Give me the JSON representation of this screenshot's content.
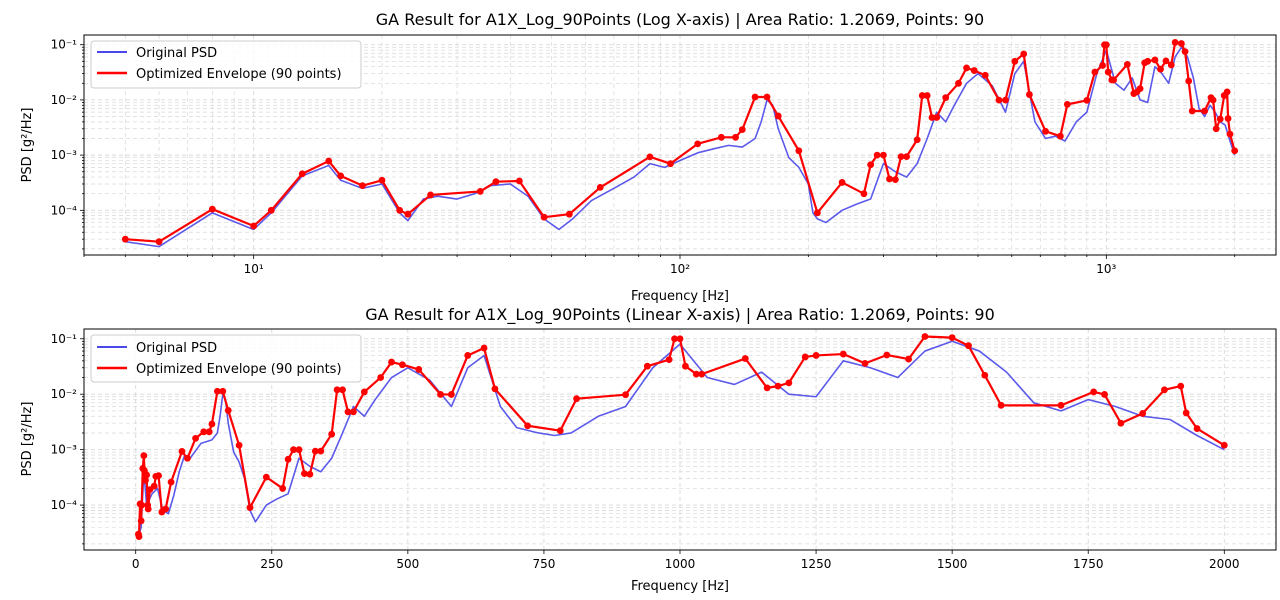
{
  "colors": {
    "original": "#4a48e8",
    "envelope": "#ff0000",
    "grid": "#d8d8d8"
  },
  "chart_data": [
    {
      "type": "line",
      "title": "GA Result for A1X_Log_90Points (Log X-axis) | Area Ratio: 1.2069, Points: 90",
      "xlabel": "Frequency [Hz]",
      "ylabel": "PSD [g²/Hz]",
      "xscale": "log",
      "yscale": "log",
      "xlim": [
        4,
        2500
      ],
      "ylim": [
        1.55e-05,
        0.15
      ],
      "xticks": [
        {
          "value": 10,
          "label": "10¹"
        },
        {
          "value": 100,
          "label": "10²"
        },
        {
          "value": 1000,
          "label": "10³"
        }
      ],
      "yticks": [
        {
          "value": 0.0001,
          "label": "10⁻⁴"
        },
        {
          "value": 0.001,
          "label": "10⁻³"
        },
        {
          "value": 0.01,
          "label": "10⁻²"
        },
        {
          "value": 0.1,
          "label": "10⁻¹"
        }
      ],
      "grid": true,
      "legend_position": "top-left",
      "legend": [
        "Original PSD",
        "Optimized Envelope (90 points)"
      ],
      "series": [
        {
          "name": "Original PSD",
          "x": [
            5,
            6,
            8,
            10,
            11,
            13,
            15,
            16,
            18,
            20,
            22,
            23,
            25,
            27,
            30,
            33,
            36,
            40,
            44,
            48,
            52,
            56,
            62,
            70,
            78,
            85,
            92,
            100,
            110,
            120,
            130,
            140,
            150,
            155,
            160,
            165,
            170,
            180,
            190,
            200,
            205,
            210,
            220,
            240,
            260,
            280,
            300,
            320,
            340,
            360,
            380,
            400,
            420,
            440,
            470,
            500,
            540,
            580,
            610,
            640,
            680,
            720,
            760,
            800,
            850,
            900,
            950,
            1000,
            1050,
            1100,
            1150,
            1200,
            1250,
            1300,
            1350,
            1400,
            1450,
            1500,
            1550,
            1600,
            1650,
            1700,
            1750,
            1800,
            1850,
            1900,
            1950,
            2000
          ],
          "y": [
            2.7e-05,
            2.2e-05,
            9e-05,
            4.5e-05,
            9e-05,
            0.00042,
            0.00065,
            0.00035,
            0.00025,
            0.0003,
            9e-05,
            6.5e-05,
            0.00016,
            0.00018,
            0.00016,
            0.0002,
            0.00028,
            0.0003,
            0.00018,
            7e-05,
            4.5e-05,
            7e-05,
            0.00015,
            0.00025,
            0.0004,
            0.0007,
            0.0006,
            0.0008,
            0.0011,
            0.0013,
            0.0015,
            0.0014,
            0.002,
            0.004,
            0.01,
            0.008,
            0.003,
            0.0009,
            0.0006,
            0.0003,
            9e-05,
            7e-05,
            6e-05,
            0.0001,
            0.00013,
            0.00016,
            0.0007,
            0.0005,
            0.0004,
            0.0007,
            0.002,
            0.006,
            0.004,
            0.008,
            0.02,
            0.03,
            0.018,
            0.006,
            0.03,
            0.05,
            0.004,
            0.002,
            0.0022,
            0.0018,
            0.004,
            0.006,
            0.03,
            0.08,
            0.02,
            0.015,
            0.025,
            0.01,
            0.009,
            0.04,
            0.03,
            0.02,
            0.06,
            0.09,
            0.06,
            0.025,
            0.007,
            0.005,
            0.008,
            0.006,
            0.004,
            0.0035,
            0.0018,
            0.001
          ]
        },
        {
          "name": "Optimized Envelope (90 points)",
          "x": [
            5,
            6,
            8,
            10,
            11,
            13,
            15,
            16,
            18,
            20,
            22,
            23,
            26,
            34,
            37,
            42,
            48,
            55,
            65,
            85,
            95,
            110,
            125,
            135,
            140,
            150,
            160,
            170,
            190,
            210,
            240,
            270,
            280,
            290,
            300,
            310,
            320,
            330,
            340,
            360,
            370,
            380,
            390,
            400,
            420,
            450,
            470,
            490,
            520,
            560,
            580,
            610,
            640,
            660,
            720,
            780,
            810,
            900,
            940,
            980,
            990,
            1000,
            1010,
            1030,
            1040,
            1120,
            1160,
            1180,
            1200,
            1230,
            1250,
            1300,
            1340,
            1380,
            1420,
            1450,
            1500,
            1530,
            1560,
            1590,
            1700,
            1760,
            1780,
            1810,
            1850,
            1890,
            1920,
            1930,
            1950,
            2000
          ],
          "y": [
            3e-05,
            2.7e-05,
            0.000105,
            5.2e-05,
            0.0001,
            0.00046,
            0.00078,
            0.00042,
            0.00028,
            0.00035,
            0.0001,
            8.5e-05,
            0.00019,
            0.00022,
            0.00033,
            0.00034,
            7.5e-05,
            8.5e-05,
            0.00026,
            0.00093,
            0.0007,
            0.0016,
            0.0021,
            0.0021,
            0.0029,
            0.0113,
            0.0113,
            0.0051,
            0.0012,
            9e-05,
            0.00032,
            0.0002,
            0.00067,
            0.001,
            0.001,
            0.00037,
            0.00036,
            0.00094,
            0.00094,
            0.0019,
            0.012,
            0.012,
            0.0048,
            0.0048,
            0.011,
            0.02,
            0.038,
            0.034,
            0.028,
            0.0099,
            0.0099,
            0.05,
            0.068,
            0.0125,
            0.0027,
            0.0022,
            0.0083,
            0.0098,
            0.032,
            0.042,
            0.1,
            0.1,
            0.032,
            0.023,
            0.023,
            0.044,
            0.013,
            0.014,
            0.016,
            0.047,
            0.05,
            0.053,
            0.036,
            0.051,
            0.043,
            0.11,
            0.105,
            0.075,
            0.022,
            0.0063,
            0.0063,
            0.011,
            0.0099,
            0.003,
            0.0045,
            0.012,
            0.014,
            0.0046,
            0.0024,
            0.0012
          ]
        }
      ]
    },
    {
      "type": "line",
      "title": "GA Result for A1X_Log_90Points (Linear X-axis) | Area Ratio: 1.2069, Points: 90",
      "xlabel": "Frequency [Hz]",
      "ylabel": "PSD [g²/Hz]",
      "xscale": "linear",
      "yscale": "log",
      "xlim": [
        -95,
        2095
      ],
      "ylim": [
        1.55e-05,
        0.15
      ],
      "xticks": [
        {
          "value": 0,
          "label": "0"
        },
        {
          "value": 250,
          "label": "250"
        },
        {
          "value": 500,
          "label": "500"
        },
        {
          "value": 750,
          "label": "750"
        },
        {
          "value": 1000,
          "label": "1000"
        },
        {
          "value": 1250,
          "label": "1250"
        },
        {
          "value": 1500,
          "label": "1500"
        },
        {
          "value": 1750,
          "label": "1750"
        },
        {
          "value": 2000,
          "label": "2000"
        }
      ],
      "yticks": [
        {
          "value": 0.0001,
          "label": "10⁻⁴"
        },
        {
          "value": 0.001,
          "label": "10⁻³"
        },
        {
          "value": 0.01,
          "label": "10⁻²"
        },
        {
          "value": 0.1,
          "label": "10⁻¹"
        }
      ],
      "grid": true,
      "legend_position": "top-left",
      "legend": [
        "Original PSD",
        "Optimized Envelope (90 points)"
      ],
      "series": [
        {
          "name": "Original PSD",
          "x": [
            5,
            10,
            15,
            20,
            30,
            40,
            50,
            60,
            70,
            80,
            90,
            100,
            120,
            140,
            150,
            155,
            160,
            165,
            170,
            180,
            190,
            200,
            210,
            220,
            240,
            260,
            280,
            300,
            320,
            340,
            360,
            380,
            400,
            420,
            440,
            470,
            500,
            540,
            580,
            610,
            640,
            670,
            700,
            740,
            770,
            800,
            850,
            900,
            950,
            1000,
            1050,
            1100,
            1150,
            1200,
            1250,
            1300,
            1350,
            1400,
            1450,
            1500,
            1550,
            1600,
            1650,
            1700,
            1750,
            1800,
            1850,
            1900,
            1950,
            2000
          ],
          "y": [
            2.7e-05,
            4e-05,
            0.0004,
            0.0001,
            0.00016,
            0.0002,
            8e-05,
            7e-05,
            0.00015,
            0.0004,
            0.0008,
            0.0007,
            0.0013,
            0.0015,
            0.002,
            0.004,
            0.01,
            0.008,
            0.003,
            0.0009,
            0.0006,
            0.0003,
            8e-05,
            5e-05,
            0.0001,
            0.00013,
            0.00016,
            0.0007,
            0.0005,
            0.0004,
            0.0007,
            0.002,
            0.006,
            0.004,
            0.008,
            0.02,
            0.03,
            0.018,
            0.006,
            0.03,
            0.05,
            0.006,
            0.0025,
            0.002,
            0.0018,
            0.002,
            0.004,
            0.006,
            0.03,
            0.08,
            0.02,
            0.015,
            0.025,
            0.01,
            0.009,
            0.04,
            0.03,
            0.02,
            0.06,
            0.09,
            0.06,
            0.025,
            0.007,
            0.005,
            0.008,
            0.006,
            0.004,
            0.0035,
            0.0018,
            0.001
          ]
        },
        {
          "name": "Optimized Envelope (90 points)",
          "x": [
            5,
            6,
            8,
            10,
            11,
            13,
            15,
            16,
            18,
            20,
            22,
            23,
            26,
            34,
            37,
            42,
            48,
            55,
            65,
            85,
            95,
            110,
            125,
            135,
            140,
            150,
            160,
            170,
            190,
            210,
            240,
            270,
            280,
            290,
            300,
            310,
            320,
            330,
            340,
            360,
            370,
            380,
            390,
            400,
            420,
            450,
            470,
            490,
            520,
            560,
            580,
            610,
            640,
            660,
            720,
            780,
            810,
            900,
            940,
            980,
            990,
            1000,
            1010,
            1030,
            1040,
            1120,
            1160,
            1180,
            1200,
            1230,
            1250,
            1300,
            1340,
            1380,
            1420,
            1450,
            1500,
            1530,
            1560,
            1590,
            1700,
            1760,
            1780,
            1810,
            1850,
            1890,
            1920,
            1930,
            1950,
            2000
          ],
          "y": [
            3e-05,
            2.7e-05,
            0.000105,
            5.2e-05,
            0.0001,
            0.00046,
            0.00078,
            0.00042,
            0.00028,
            0.00035,
            0.0001,
            8.5e-05,
            0.00019,
            0.00022,
            0.00033,
            0.00034,
            7.5e-05,
            8.5e-05,
            0.00026,
            0.00093,
            0.0007,
            0.0016,
            0.0021,
            0.0021,
            0.0029,
            0.0113,
            0.0113,
            0.0051,
            0.0012,
            9e-05,
            0.00032,
            0.0002,
            0.00067,
            0.001,
            0.001,
            0.00037,
            0.00036,
            0.00094,
            0.00094,
            0.0019,
            0.012,
            0.012,
            0.0048,
            0.0048,
            0.011,
            0.02,
            0.038,
            0.034,
            0.028,
            0.0099,
            0.0099,
            0.05,
            0.068,
            0.0125,
            0.0027,
            0.0022,
            0.0083,
            0.0098,
            0.032,
            0.042,
            0.1,
            0.1,
            0.032,
            0.023,
            0.023,
            0.044,
            0.013,
            0.014,
            0.016,
            0.047,
            0.05,
            0.053,
            0.036,
            0.051,
            0.043,
            0.11,
            0.105,
            0.075,
            0.022,
            0.0063,
            0.0063,
            0.011,
            0.0099,
            0.003,
            0.0045,
            0.012,
            0.014,
            0.0046,
            0.0024,
            0.0012
          ]
        }
      ]
    }
  ]
}
